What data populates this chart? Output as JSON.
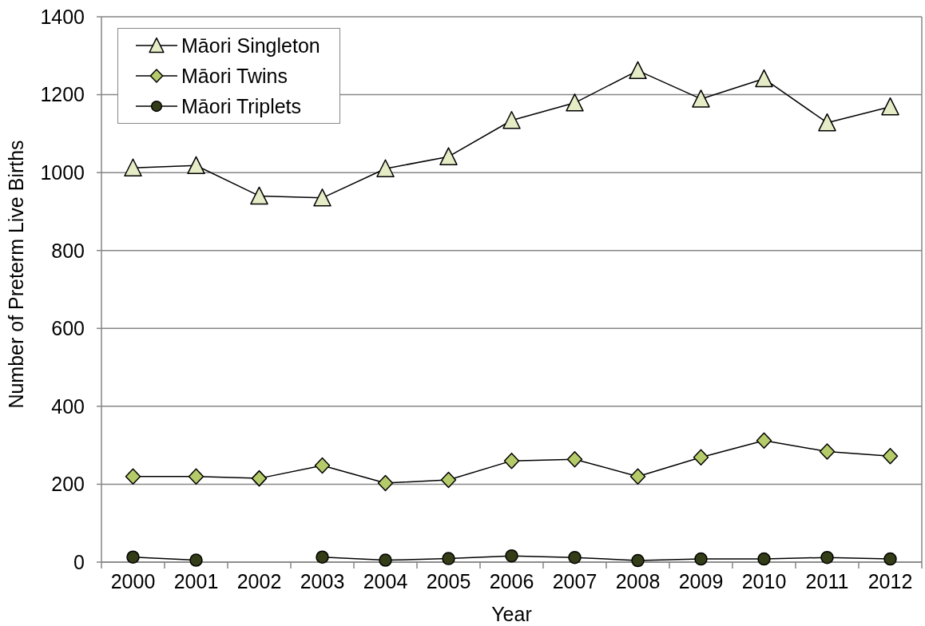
{
  "chart_data": {
    "type": "line",
    "xlabel": "Year",
    "ylabel": "Number of Preterm Live Births",
    "categories": [
      "2000",
      "2001",
      "2002",
      "2003",
      "2004",
      "2005",
      "2006",
      "2007",
      "2008",
      "2009",
      "2010",
      "2011",
      "2012"
    ],
    "series": [
      {
        "name": "Māori Singleton",
        "color": "#e5ecc6",
        "marker": "triangle",
        "values": [
          1012,
          1018,
          940,
          935,
          1010,
          1041,
          1134,
          1179,
          1262,
          1189,
          1241,
          1128,
          1169
        ]
      },
      {
        "name": "Māori Twins",
        "color": "#b5cb6a",
        "marker": "diamond",
        "values": [
          220,
          220,
          215,
          248,
          203,
          211,
          260,
          264,
          220,
          269,
          312,
          284,
          272
        ]
      },
      {
        "name": "Māori Triplets",
        "color": "#333d17",
        "marker": "circle",
        "values": [
          13,
          5,
          null,
          13,
          5,
          9,
          16,
          12,
          4,
          8,
          8,
          12,
          8
        ]
      }
    ],
    "ylim": [
      0,
      1400
    ],
    "yticks": [
      0,
      200,
      400,
      600,
      800,
      1000,
      1200,
      1400
    ],
    "grid": "y",
    "legend": "top left",
    "line_style": "solid"
  }
}
